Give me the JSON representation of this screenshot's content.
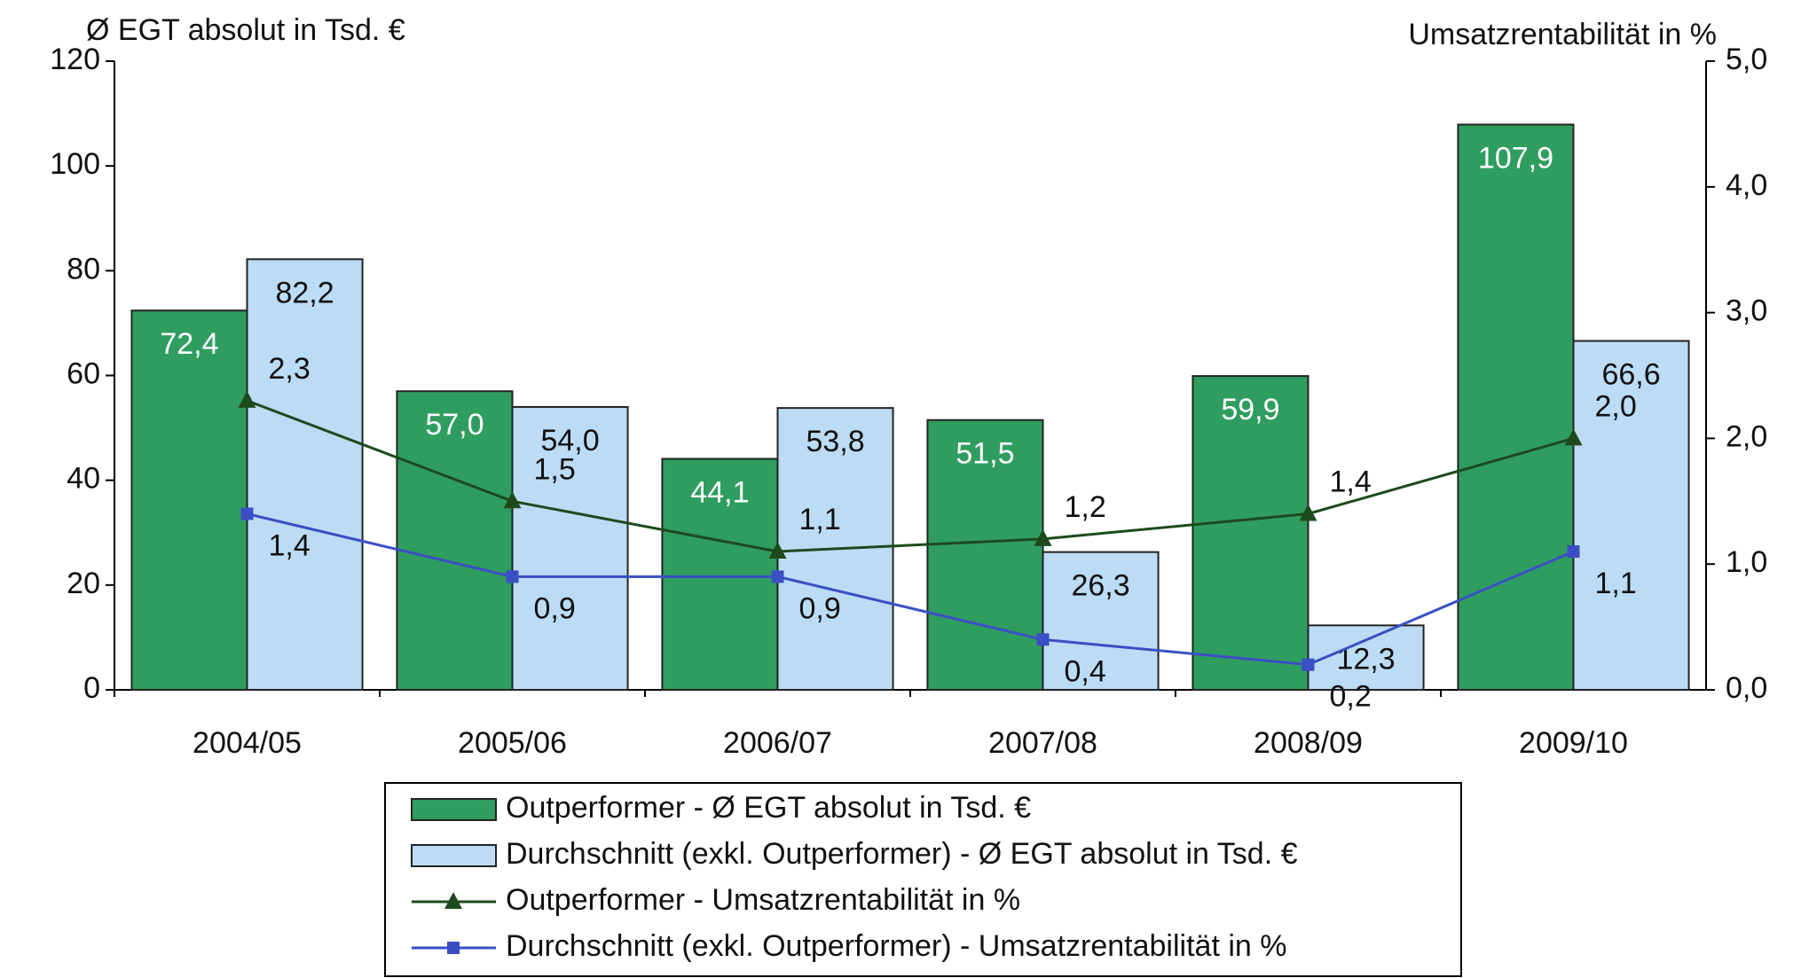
{
  "chart_data": {
    "type": "bar",
    "y_label": "Ø EGT absolut in Tsd. €",
    "y2_label": "Umsatzrentabilität in %",
    "categories": [
      "2004/05",
      "2005/06",
      "2006/07",
      "2007/08",
      "2008/09",
      "2009/10"
    ],
    "series": [
      {
        "name": "Outperformer - Ø EGT absolut in Tsd. €",
        "type": "bar",
        "color": "#2f9d5f",
        "values": [
          72.4,
          57.0,
          44.1,
          51.5,
          59.9,
          107.9
        ],
        "value_labels": [
          "72,4",
          "57,0",
          "44,1",
          "51,5",
          "59,9",
          "107,9"
        ]
      },
      {
        "name": "Durchschnitt (exkl. Outperformer) - Ø EGT absolut in Tsd. €",
        "type": "bar",
        "color": "#bcdcf5",
        "values": [
          82.2,
          54.0,
          53.8,
          26.3,
          12.3,
          66.6
        ],
        "value_labels": [
          "82,2",
          "54,0",
          "53,8",
          "26,3",
          "12,3",
          "66,6"
        ]
      },
      {
        "name": "Outperformer - Umsatzrentabilität in %",
        "type": "line",
        "axis": "y2",
        "color": "#1d4a1d",
        "marker": "triangle",
        "values": [
          2.3,
          1.5,
          1.1,
          1.2,
          1.4,
          2.0
        ],
        "value_labels": [
          "2,3",
          "1,5",
          "1,1",
          "1,2",
          "1,4",
          "2,0"
        ]
      },
      {
        "name": "Durchschnitt (exkl. Outperformer) - Umsatzrentabilität in %",
        "type": "line",
        "axis": "y2",
        "color": "#3a4fc4",
        "marker": "square",
        "values": [
          1.4,
          0.9,
          0.9,
          0.4,
          0.2,
          1.1
        ],
        "value_labels": [
          "1,4",
          "0,9",
          "0,9",
          "0,4",
          "0,2",
          "1,1"
        ]
      }
    ],
    "ylim": [
      0,
      120
    ],
    "yticks": [
      0,
      20,
      40,
      60,
      80,
      100,
      120
    ],
    "y2lim": [
      0,
      5
    ],
    "y2ticks": [
      {
        "value": 0,
        "label": "0,0"
      },
      {
        "value": 1,
        "label": "1,0"
      },
      {
        "value": 2,
        "label": "2,0"
      },
      {
        "value": 3,
        "label": "3,0"
      },
      {
        "value": 4,
        "label": "4,0"
      },
      {
        "value": 5,
        "label": "5,0"
      }
    ],
    "legend": "bottom"
  }
}
